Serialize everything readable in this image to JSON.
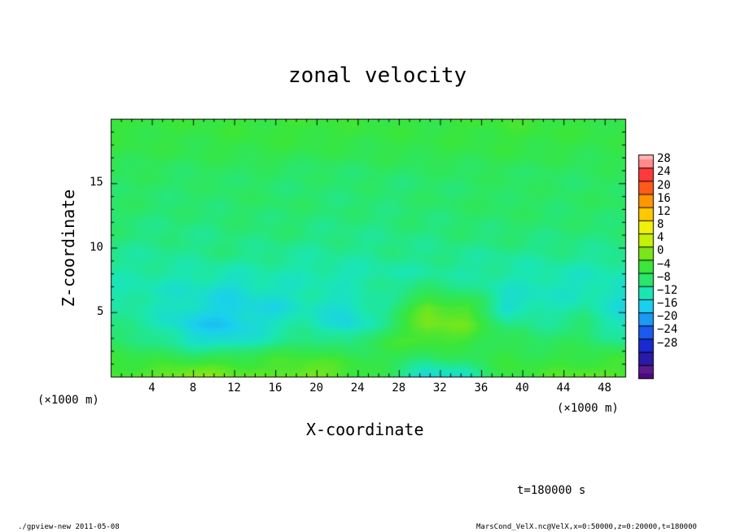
{
  "chart_data": {
    "type": "heatmap",
    "title": "zonal velocity",
    "xlabel": "X-coordinate",
    "ylabel": "Z-coordinate",
    "x_unit": "(×1000 m)",
    "y_unit": "(×1000 m)",
    "xlim": [
      0,
      50
    ],
    "ylim": [
      0,
      20
    ],
    "x_ticks": [
      "4",
      "8",
      "12",
      "16",
      "20",
      "24",
      "28",
      "32",
      "36",
      "40",
      "44",
      "48"
    ],
    "y_ticks": [
      "5",
      "10",
      "15"
    ],
    "colorbar_ticks": [
      "28",
      "24",
      "20",
      "16",
      "12",
      "8",
      "4",
      "0",
      "−4",
      "−8",
      "−12",
      "−16",
      "−20",
      "−24",
      "−28"
    ],
    "colorbar_levels": [
      -32,
      -28,
      -24,
      -20,
      -16,
      -12,
      -8,
      -4,
      0,
      4,
      8,
      12,
      16,
      20,
      24,
      28,
      32
    ],
    "colorbar_colors": [
      "#5a1a8c",
      "#2a1aa8",
      "#1a2ad0",
      "#1a5aee",
      "#1a9af5",
      "#1ad0ee",
      "#1ae6b4",
      "#2ae66a",
      "#3ae63a",
      "#7ae61a",
      "#c4f00a",
      "#f0f00a",
      "#ffc800",
      "#ff9600",
      "#ff5a1a",
      "#ff3a3a",
      "#ff8a8a"
    ],
    "grid": [
      [
        1.6,
        1.2,
        1.4,
        2.0,
        1.8,
        2.2,
        1.6,
        1.4,
        1.2,
        1.8,
        2.4,
        1.6,
        1.2,
        1.0
      ],
      [
        1.2,
        1.0,
        0.8,
        1.2,
        1.4,
        1.6,
        1.2,
        1.0,
        0.8,
        1.2,
        1.6,
        1.4,
        1.0,
        0.8
      ],
      [
        0.6,
        0.2,
        0.0,
        0.4,
        0.6,
        0.2,
        -0.2,
        0.0,
        0.4,
        0.2,
        0.6,
        0.4,
        0.0,
        0.2
      ],
      [
        -0.6,
        -1.0,
        -1.4,
        -1.2,
        -1.6,
        -2.0,
        -1.8,
        -1.4,
        -1.6,
        -1.2,
        -1.0,
        -1.4,
        -1.2,
        -0.8
      ],
      [
        -1.4,
        -1.8,
        -2.2,
        -1.6,
        -2.0,
        -2.4,
        -2.2,
        -2.6,
        -2.2,
        -1.8,
        -1.4,
        -1.6,
        -1.8,
        -1.4
      ],
      [
        -1.6,
        -2.0,
        -2.4,
        -2.0,
        -1.8,
        -2.2,
        -2.6,
        -2.4,
        -2.0,
        -1.6,
        -1.2,
        -1.8,
        -1.4,
        -1.2
      ],
      [
        -2.4,
        -2.8,
        -3.0,
        -2.6,
        -2.4,
        -2.8,
        -3.2,
        -3.0,
        -2.6,
        -2.4,
        -2.0,
        -2.2,
        -2.4,
        -2.0
      ],
      [
        -3.0,
        -3.4,
        -3.6,
        -3.2,
        -3.0,
        -3.4,
        -3.8,
        -3.6,
        -3.4,
        -3.0,
        -2.8,
        -3.0,
        -3.2,
        -2.8
      ],
      [
        -4.2,
        -4.6,
        -4.0,
        -3.6,
        -4.4,
        -4.8,
        -4.4,
        -4.0,
        -3.8,
        -4.2,
        -4.6,
        -4.2,
        -4.4,
        -4.6
      ],
      [
        -4.8,
        -5.2,
        -5.6,
        -6.0,
        -5.4,
        -5.8,
        -6.2,
        -5.6,
        -4.8,
        -5.0,
        -5.4,
        -5.8,
        -6.2,
        -5.8
      ],
      [
        -5.6,
        -6.2,
        -7.0,
        -8.4,
        -7.0,
        -6.0,
        -5.6,
        -4.2,
        -2.0,
        -3.0,
        -6.4,
        -7.0,
        -6.6,
        -7.2
      ],
      [
        -4.4,
        -5.6,
        -8.0,
        -9.4,
        -8.6,
        -6.6,
        -8.0,
        -4.0,
        5.0,
        3.0,
        -8.0,
        -6.0,
        -4.8,
        -8.4
      ],
      [
        -3.6,
        -5.0,
        -9.8,
        -10.6,
        -7.0,
        -5.2,
        -9.2,
        -2.6,
        6.0,
        4.6,
        -3.0,
        -4.0,
        -2.8,
        -7.0
      ],
      [
        -2.0,
        -2.8,
        -7.0,
        -8.4,
        -5.0,
        -2.0,
        -4.0,
        1.4,
        3.2,
        2.0,
        -0.6,
        -1.4,
        -1.0,
        -4.4
      ],
      [
        2.0,
        0.8,
        0.4,
        1.0,
        2.2,
        2.8,
        1.4,
        0.0,
        -2.4,
        -1.4,
        1.2,
        0.8,
        1.6,
        2.0
      ],
      [
        3.0,
        4.0,
        7.2,
        5.0,
        3.4,
        6.6,
        3.2,
        -1.0,
        -9.6,
        -6.4,
        1.6,
        2.6,
        4.4,
        3.0
      ]
    ]
  },
  "colorbar_edge_colors": {
    "top_cap": "#ffb4b4",
    "bottom_cap": "#4a0a7a"
  },
  "time_label": "t=180000 s",
  "footer_left": "./gpview-new  2011-05-08",
  "footer_right": "MarsCond_VelX.nc@VelX,x=0:50000,z=0:20000,t=180000"
}
